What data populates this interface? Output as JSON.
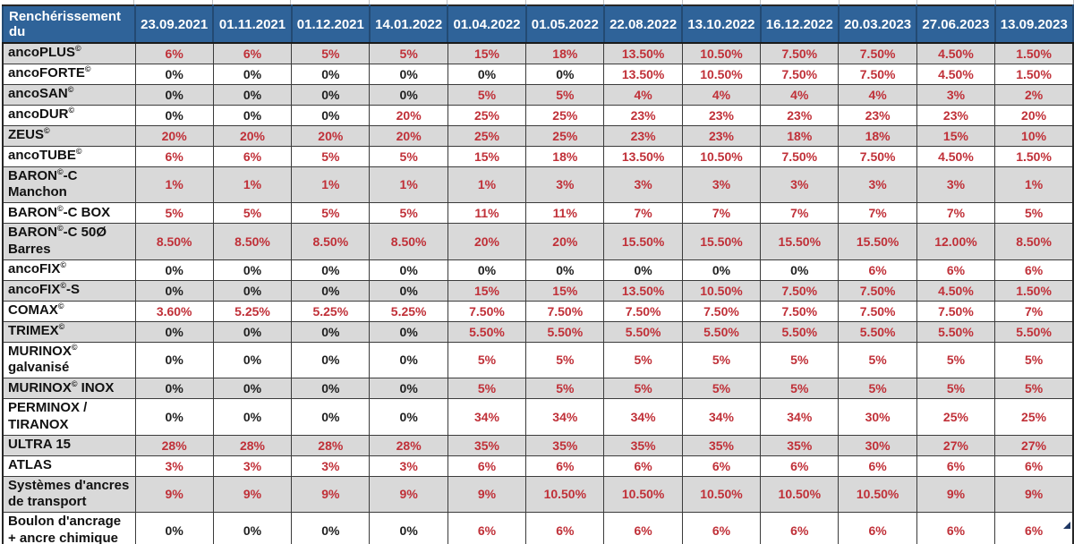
{
  "table": {
    "corner_header": "Renchérissement du",
    "columns": [
      "23.09.2021",
      "01.11.2021",
      "01.12.2021",
      "14.01.2022",
      "01.04.2022",
      "01.05.2022",
      "22.08.2022",
      "13.10.2022",
      "16.12.2022",
      "20.03.2023",
      "27.06.2023",
      "13.09.2023"
    ],
    "rows": [
      {
        "label": "ancoPLUS©",
        "values": [
          "6%",
          "6%",
          "5%",
          "5%",
          "15%",
          "18%",
          "13.50%",
          "10.50%",
          "7.50%",
          "7.50%",
          "4.50%",
          "1.50%"
        ]
      },
      {
        "label": "ancoFORTE©",
        "values": [
          "0%",
          "0%",
          "0%",
          "0%",
          "0%",
          "0%",
          "13.50%",
          "10.50%",
          "7.50%",
          "7.50%",
          "4.50%",
          "1.50%"
        ]
      },
      {
        "label": "ancoSAN©",
        "values": [
          "0%",
          "0%",
          "0%",
          "0%",
          "5%",
          "5%",
          "4%",
          "4%",
          "4%",
          "4%",
          "3%",
          "2%"
        ]
      },
      {
        "label": "ancoDUR©",
        "values": [
          "0%",
          "0%",
          "0%",
          "20%",
          "25%",
          "25%",
          "23%",
          "23%",
          "23%",
          "23%",
          "23%",
          "20%"
        ]
      },
      {
        "label": "ZEUS©",
        "values": [
          "20%",
          "20%",
          "20%",
          "20%",
          "25%",
          "25%",
          "23%",
          "23%",
          "18%",
          "18%",
          "15%",
          "10%"
        ]
      },
      {
        "label": "ancoTUBE©",
        "values": [
          "6%",
          "6%",
          "5%",
          "5%",
          "15%",
          "18%",
          "13.50%",
          "10.50%",
          "7.50%",
          "7.50%",
          "4.50%",
          "1.50%"
        ]
      },
      {
        "label": "BARON©-C Manchon",
        "values": [
          "1%",
          "1%",
          "1%",
          "1%",
          "1%",
          "3%",
          "3%",
          "3%",
          "3%",
          "3%",
          "3%",
          "1%"
        ]
      },
      {
        "label": "BARON©-C BOX",
        "values": [
          "5%",
          "5%",
          "5%",
          "5%",
          "11%",
          "11%",
          "7%",
          "7%",
          "7%",
          "7%",
          "7%",
          "5%"
        ]
      },
      {
        "label": "BARON©-C 50Ø Barres",
        "values": [
          "8.50%",
          "8.50%",
          "8.50%",
          "8.50%",
          "20%",
          "20%",
          "15.50%",
          "15.50%",
          "15.50%",
          "15.50%",
          "12.00%",
          "8.50%"
        ]
      },
      {
        "label": "ancoFIX©",
        "values": [
          "0%",
          "0%",
          "0%",
          "0%",
          "0%",
          "0%",
          "0%",
          "0%",
          "0%",
          "6%",
          "6%",
          "6%"
        ]
      },
      {
        "label": "ancoFIX©-S",
        "values": [
          "0%",
          "0%",
          "0%",
          "0%",
          "15%",
          "15%",
          "13.50%",
          "10.50%",
          "7.50%",
          "7.50%",
          "4.50%",
          "1.50%"
        ]
      },
      {
        "label": "COMAX©",
        "values": [
          "3.60%",
          "5.25%",
          "5.25%",
          "5.25%",
          "7.50%",
          "7.50%",
          "7.50%",
          "7.50%",
          "7.50%",
          "7.50%",
          "7.50%",
          "7%"
        ]
      },
      {
        "label": "TRIMEX©",
        "values": [
          "0%",
          "0%",
          "0%",
          "0%",
          "5.50%",
          "5.50%",
          "5.50%",
          "5.50%",
          "5.50%",
          "5.50%",
          "5.50%",
          "5.50%"
        ]
      },
      {
        "label": "MURINOX© galvanisé",
        "values": [
          "0%",
          "0%",
          "0%",
          "0%",
          "5%",
          "5%",
          "5%",
          "5%",
          "5%",
          "5%",
          "5%",
          "5%"
        ]
      },
      {
        "label": "MURINOX© INOX",
        "values": [
          "0%",
          "0%",
          "0%",
          "0%",
          "5%",
          "5%",
          "5%",
          "5%",
          "5%",
          "5%",
          "5%",
          "5%"
        ]
      },
      {
        "label": "PERMINOX / TIRANOX",
        "values": [
          "0%",
          "0%",
          "0%",
          "0%",
          "34%",
          "34%",
          "34%",
          "34%",
          "34%",
          "30%",
          "25%",
          "25%"
        ]
      },
      {
        "label": "ULTRA 15",
        "values": [
          "28%",
          "28%",
          "28%",
          "28%",
          "35%",
          "35%",
          "35%",
          "35%",
          "35%",
          "30%",
          "27%",
          "27%"
        ]
      },
      {
        "label": "ATLAS",
        "values": [
          "3%",
          "3%",
          "3%",
          "3%",
          "6%",
          "6%",
          "6%",
          "6%",
          "6%",
          "6%",
          "6%",
          "6%"
        ]
      },
      {
        "label": "Systèmes d'ancres de transport",
        "values": [
          "9%",
          "9%",
          "9%",
          "9%",
          "9%",
          "10.50%",
          "10.50%",
          "10.50%",
          "10.50%",
          "10.50%",
          "9%",
          "9%"
        ]
      },
      {
        "label": "Boulon d'ancrage + ancre chimique",
        "values": [
          "0%",
          "0%",
          "0%",
          "0%",
          "6%",
          "6%",
          "6%",
          "6%",
          "6%",
          "6%",
          "6%",
          "6%"
        ]
      }
    ],
    "tall_row_indexes": [
      6,
      8,
      13,
      15,
      18,
      19
    ]
  },
  "colors": {
    "header_bg": "#2F6399",
    "header_text": "#FFFFFF",
    "row_bg": "#FFFFFF",
    "row_alt_bg": "#D9D9D9",
    "value_nonzero": "#C03038",
    "value_zero": "#1F1F1F",
    "fill_handle": "#1F3864"
  },
  "icons": {
    "fill_handle": "selection-fill-handle-icon"
  }
}
